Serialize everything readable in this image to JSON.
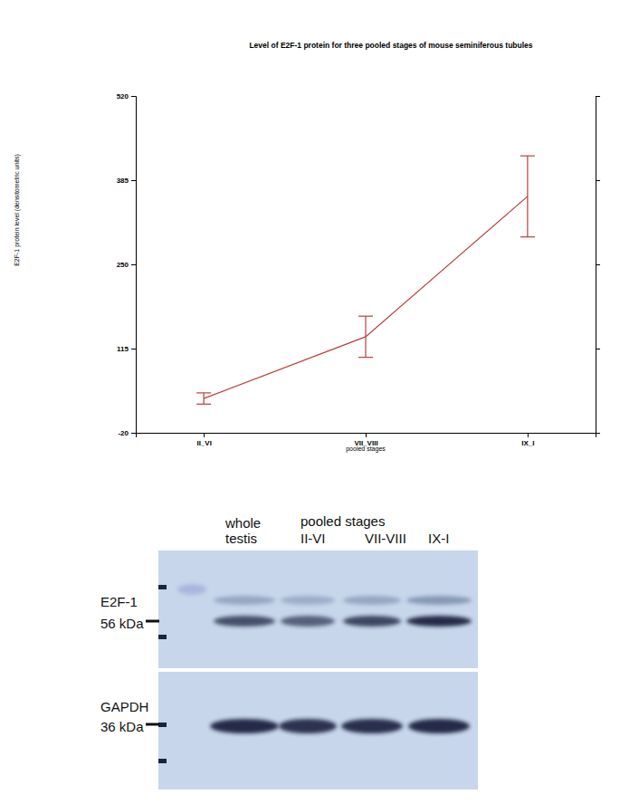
{
  "chart_data": {
    "type": "line",
    "title": "Level of E2F-1 protein for three pooled stages of mouse seminiferous tubules",
    "x_label": "pooled stages",
    "y_label": "E2F-1 protein level (densitometric units)",
    "categories": [
      "II_VI",
      "VII_VIII",
      "IX_I"
    ],
    "values": [
      35,
      134,
      359
    ],
    "errors": [
      9,
      33,
      65
    ],
    "color": "#b5403a",
    "ylim": [
      -20,
      520
    ],
    "yticks": [
      -20,
      115,
      250,
      385,
      520
    ],
    "grid": false
  },
  "blot": {
    "header": "pooled stages",
    "lane_labels": [
      [
        "whole",
        "testis"
      ],
      [
        "II-VI"
      ],
      [
        "VII-VIII"
      ],
      [
        "IX-I"
      ]
    ],
    "panels": [
      {
        "protein": "E2F-1",
        "size": "56 kDa"
      },
      {
        "protein": "GAPDH",
        "size": "36 kDa"
      }
    ]
  }
}
